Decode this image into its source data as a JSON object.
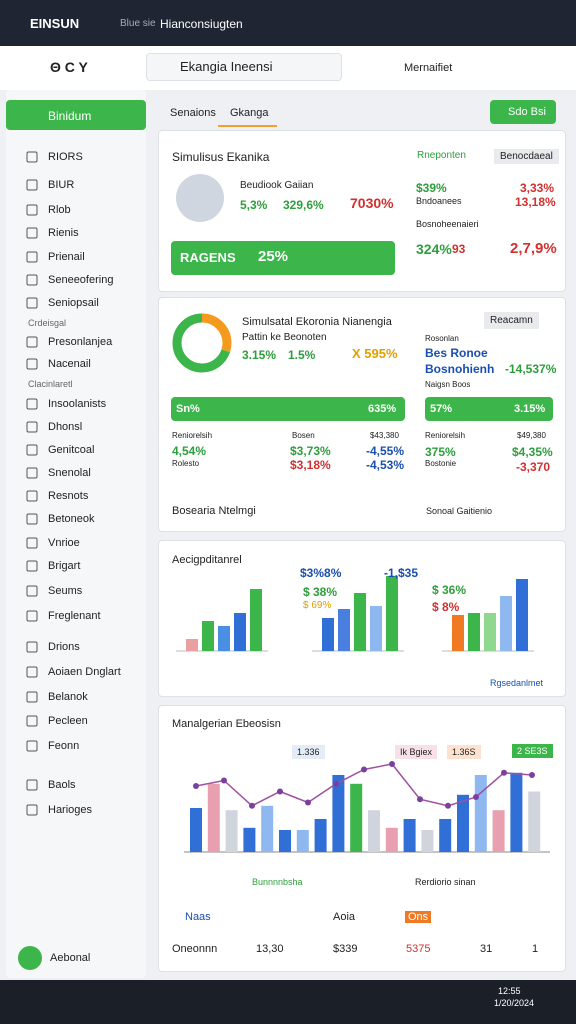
{
  "window": {
    "title": "EINSUN",
    "tabs": [
      "Blue sie",
      "Hianconsiugten"
    ],
    "clock": [
      "12:55",
      "1/20/2024"
    ]
  },
  "toolbar": {
    "nav": "Θ C Y",
    "search": "Ekangia Ineensi",
    "button": "Mernaifiet"
  },
  "sidebar": {
    "active": "Binidum",
    "items": [
      "RIORS",
      "BIUR",
      "Rlob",
      "Rienis",
      "Prienail",
      "Seneeofering",
      "Seniopsail",
      "Crdeisgal",
      "Presonlanjea",
      "Nacenail",
      "Clacinlaretl",
      "Insoolanists",
      "Dhonsl",
      "Genitcoal",
      "Snenolal",
      "Resnots",
      "Betoneok",
      "Vnrioe",
      "Brigart",
      "Seums",
      "Freglenant",
      "Drions",
      "Aoiaen Dnglart",
      "Belanok",
      "Pecleen",
      "Feonn",
      "Baols",
      "Harioges"
    ],
    "footer": "Aebonal"
  },
  "tabs": {
    "items": [
      "Senaions",
      "Gkanga"
    ],
    "action": "Sdo Bsi"
  },
  "panel1": {
    "title": "Simulisus Ekanika",
    "profile": "Beudiook Gaiian",
    "stats": [
      "5,3%",
      "329,6%",
      "7030%"
    ],
    "banner": [
      "RAGENS",
      "25%"
    ],
    "side_title": "Rneponten",
    "side_button": "Benocdaeal",
    "rows": [
      "$39%",
      "3,33%",
      "Bndoanees",
      "13,18%",
      "Bosnoheenaieri",
      "324%",
      "93",
      "2,7,9%"
    ]
  },
  "panel2": {
    "title": "Simulsatal Ekoronia Nianengia",
    "subtitle": "Pattin ke Beonoten",
    "stats": [
      "3.15%",
      "1.5%",
      "X 595%"
    ],
    "donut": [
      30,
      70
    ],
    "button": "Reacamn",
    "side": [
      "Rosonlan",
      "Bes Ronoe",
      "Bosnohienh",
      "-14,537%",
      "Naigsn Boos"
    ],
    "bars": [
      "Sn%",
      "635%",
      "57%",
      "3.15%"
    ],
    "grid": [
      "Reniorelsih",
      "Bosen",
      "$43,380",
      "4,54%",
      "$3,73%",
      "-4,55%",
      "Rolesto",
      "$3,18%",
      "-4,53%",
      "Reniorelsih",
      "$49,380",
      "375%",
      "$4,35%",
      "Bostonie",
      "-3,370"
    ],
    "footer": [
      "Bosearia Ntelmgi",
      "Sonoal Gaitienio"
    ]
  },
  "panel3": {
    "title": "Aecigpditanrel",
    "labels": [
      "$3%8%",
      "-1,$35",
      "$ 38%",
      "$ 69%",
      "$ 36%",
      "$ 8%"
    ],
    "link": "Rgsedanlmet",
    "charts": [
      {
        "values": [
          12,
          30,
          25,
          38,
          62
        ],
        "colors": [
          "#e8a0a0",
          "#3cb64a",
          "#4a90e2",
          "#2f6fd6",
          "#3cb64a"
        ]
      },
      {
        "values": [
          33,
          42,
          58,
          45,
          75
        ],
        "colors": [
          "#2f6fd6",
          "#4a7fe0",
          "#3cb64a",
          "#8fb8f0",
          "#3cb64a"
        ]
      },
      {
        "values": [
          36,
          38,
          38,
          55,
          72
        ],
        "colors": [
          "#f07a24",
          "#3cb64a",
          "#8fd88f",
          "#8fb8f0",
          "#2f6fd6"
        ]
      }
    ],
    "ylim": [
      0,
      80
    ]
  },
  "panel4": {
    "title": "Manalgerian Ebeosisn",
    "chips": [
      "1.336",
      "Ik Bgiex",
      "1.36S",
      "2 SE3S"
    ],
    "axis": [
      "Bunnnnbsha",
      "Rerdiorio sinan"
    ],
    "bars": [
      40,
      62,
      38,
      22,
      42,
      20,
      20,
      30,
      70,
      62,
      38,
      22,
      30,
      20,
      30,
      52,
      70,
      38,
      72,
      55
    ],
    "colors": [
      "#2f6fd6",
      "#e8a0b0",
      "#d0d4dc",
      "#2f6fd6",
      "#8fb8f0",
      "#2f6fd6",
      "#8fb8f0",
      "#2f6fd6",
      "#2f6fd6",
      "#3cb64a",
      "#d0d4dc",
      "#e8a0b0",
      "#2f6fd6",
      "#d0d4dc",
      "#2f6fd6",
      "#2f6fd6",
      "#8fb8f0",
      "#e8a0b0",
      "#2f6fd6",
      "#d0d4dc"
    ],
    "line": [
      60,
      65,
      42,
      55,
      45,
      62,
      75,
      80,
      48,
      42,
      50,
      72,
      70
    ],
    "ylim": [
      0,
      100
    ],
    "actions": [
      "Naas",
      "Aoia",
      "Ons"
    ],
    "row": [
      "Oneonnn",
      "13,30",
      "$339",
      "5375",
      "31",
      "1"
    ]
  }
}
